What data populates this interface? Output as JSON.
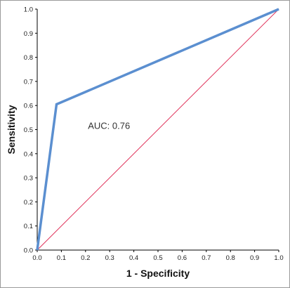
{
  "chart_data": {
    "type": "line",
    "xlabel": "1 - Specificity",
    "ylabel": "Sensitivity",
    "xlim": [
      0.0,
      1.0
    ],
    "ylim": [
      0.0,
      1.0
    ],
    "x_ticks": [
      "0.0",
      "0.1",
      "0.2",
      "0.3",
      "0.4",
      "0.5",
      "0.6",
      "0.7",
      "0.8",
      "0.9",
      "1.0"
    ],
    "y_ticks": [
      "0.0",
      "0.1",
      "0.2",
      "0.3",
      "0.4",
      "0.5",
      "0.6",
      "0.7",
      "0.8",
      "0.9",
      "1.0"
    ],
    "grid": false,
    "legend": "none",
    "series": [
      {
        "color": "#5b8fd0",
        "x": [
          0.0,
          0.08,
          1.0
        ],
        "y": [
          0.0,
          0.605,
          1.0
        ]
      },
      {
        "color": "#e0325a",
        "x": [
          0.0,
          1.0
        ],
        "y": [
          0.0,
          1.0
        ]
      }
    ],
    "annotation": {
      "text": "AUC: 0.76",
      "x": 0.21,
      "y": 0.515
    }
  }
}
